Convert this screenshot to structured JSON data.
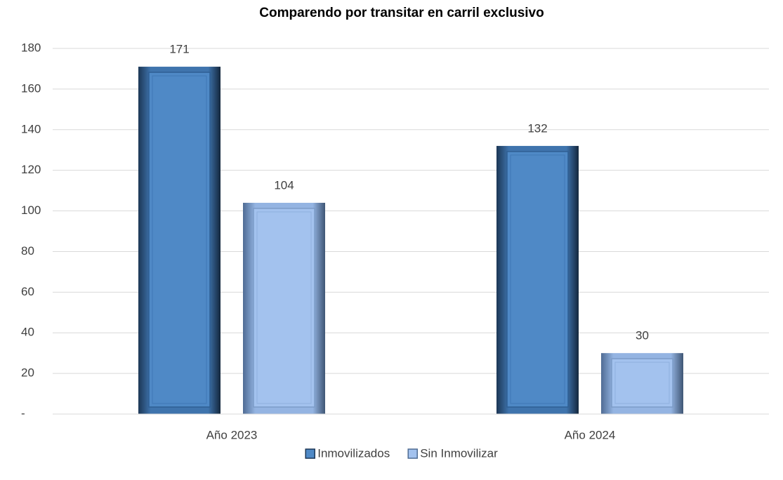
{
  "chart_data": {
    "type": "bar",
    "title": "Comparendo por transitar en carril exclusivo",
    "categories": [
      "Año 2023",
      "Año 2024"
    ],
    "series": [
      {
        "name": "Inmovilizados",
        "color": "#4f89c6",
        "values": [
          171,
          132
        ]
      },
      {
        "name": "Sin Inmovilizar",
        "color": "#a3c2ee",
        "values": [
          104,
          30
        ]
      }
    ],
    "ylim": [
      0,
      180
    ],
    "yticks": [
      {
        "value": 0,
        "label": "-"
      },
      20,
      40,
      60,
      80,
      100,
      120,
      140,
      160,
      180
    ],
    "grid": true,
    "legend": "bottom"
  }
}
